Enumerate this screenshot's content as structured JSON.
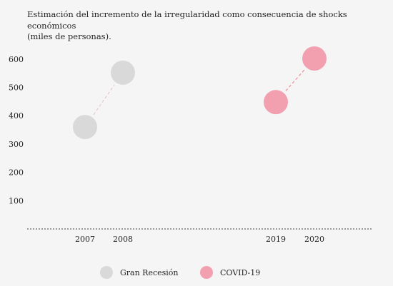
{
  "chart_data": {
    "type": "scatter",
    "title": "Estimación del incremento de la irregularidad como consecuencia de shocks económicos\n(miles de personas).",
    "xlabel": "",
    "ylabel": "",
    "ylim": [
      0,
      650
    ],
    "yticks": [
      "100",
      "200",
      "300",
      "400",
      "500",
      "600"
    ],
    "grid": false,
    "legend_position": "bottom",
    "series": [
      {
        "name": "Gran Recesión",
        "color": "#d9d9d9",
        "line_color": "#e4c9cb",
        "points": [
          {
            "x": "2007",
            "y": 360
          },
          {
            "x": "2008",
            "y": 552
          }
        ]
      },
      {
        "name": "COVID-19",
        "color": "#f2a0b0",
        "line_color": "#ee8f9c",
        "points": [
          {
            "x": "2019",
            "y": 448
          },
          {
            "x": "2020",
            "y": 602
          }
        ]
      }
    ]
  }
}
